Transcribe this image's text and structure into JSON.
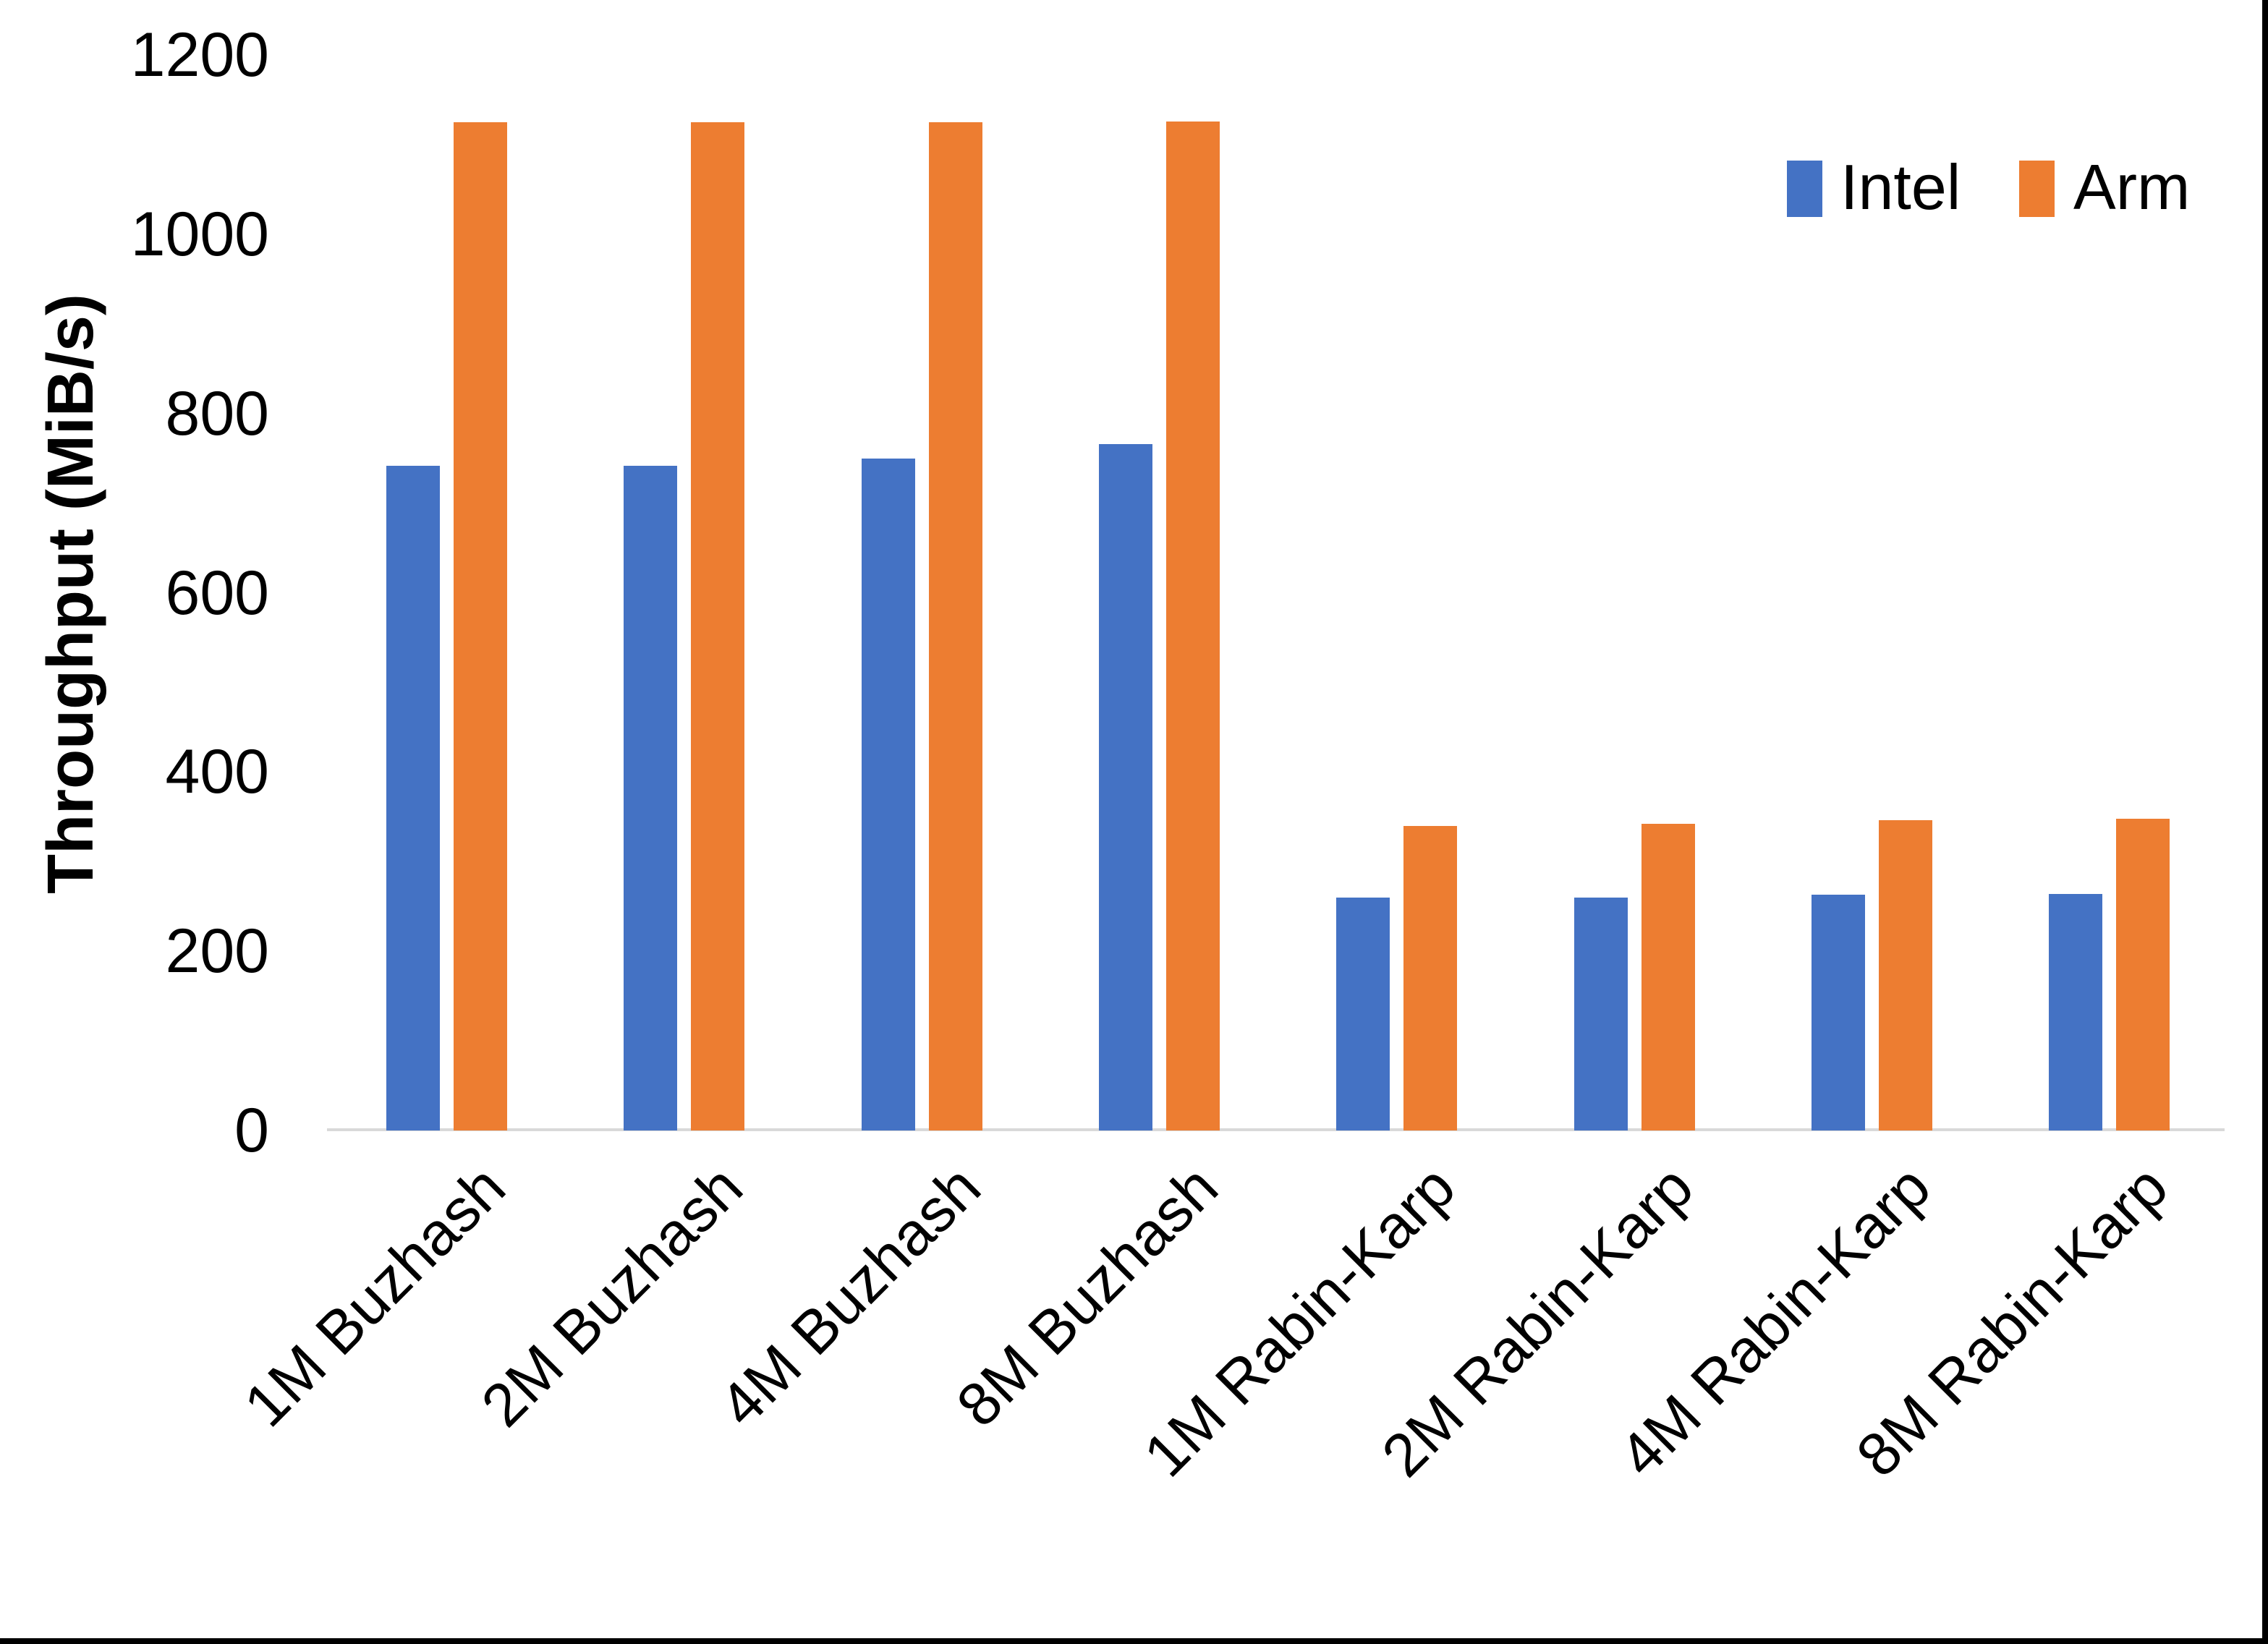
{
  "figure": {
    "background": "#ffffff",
    "border_color": "#000000"
  },
  "chart_data": {
    "type": "bar",
    "title": "",
    "xlabel": "",
    "ylabel": "Throughput (MiB/s)",
    "ylim": [
      0,
      1200
    ],
    "grid": false,
    "legend_position": "top-right-inside",
    "axis_line_color": "#d9d9d9",
    "yticks": [
      {
        "value": 0,
        "label": "0"
      },
      {
        "value": 200,
        "label": "200"
      },
      {
        "value": 400,
        "label": "400"
      },
      {
        "value": 600,
        "label": "600"
      },
      {
        "value": 800,
        "label": "800"
      },
      {
        "value": 1000,
        "label": "1000"
      },
      {
        "value": 1200,
        "label": "1200"
      }
    ],
    "categories": [
      "1M Buzhash",
      "2M Buzhash",
      "4M Buzhash",
      "8M Buzhash",
      "1M Rabin-Karp",
      "2M Rabin-Karp",
      "4M Rabin-Karp",
      "8M Rabin-Karp"
    ],
    "series": [
      {
        "name": "Intel",
        "color": "#4472c4",
        "values": [
          742,
          742,
          750,
          766,
          260,
          260,
          263,
          264
        ]
      },
      {
        "name": "Arm",
        "color": "#ed7d31",
        "values": [
          1125,
          1125,
          1125,
          1126,
          340,
          342,
          346,
          348
        ]
      }
    ]
  }
}
